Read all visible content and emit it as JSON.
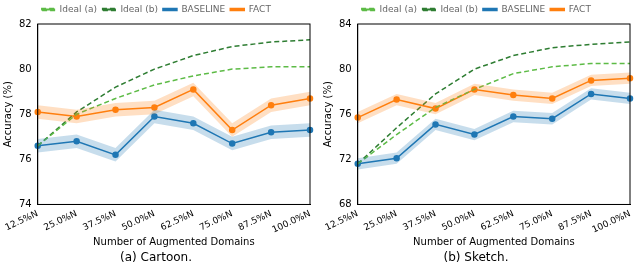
{
  "chart_data": [
    {
      "type": "line",
      "title": "(a) Cartoon.",
      "x_label": "Number of Augmented Domains",
      "y_label": "Accuracy (%)",
      "categories": [
        "12.5%N",
        "25.0%N",
        "37.5%N",
        "50.0%N",
        "62.5%N",
        "75.0%N",
        "87.5%N",
        "100.0%N"
      ],
      "ylim": [
        74,
        82
      ],
      "yticks": [
        74,
        76,
        78,
        80,
        82
      ],
      "grid": false,
      "legend": "top",
      "series": [
        {
          "name": "Ideal (a)",
          "color": "#5dbb46",
          "line_style": "dashed",
          "marker": "none",
          "values": [
            76.6,
            78.0,
            78.7,
            79.3,
            79.7,
            80.0,
            80.1,
            80.1
          ]
        },
        {
          "name": "Ideal (b)",
          "color": "#2e7d32",
          "line_style": "dashed",
          "marker": "none",
          "values": [
            76.6,
            78.1,
            79.2,
            80.0,
            80.6,
            81.0,
            81.2,
            81.3
          ]
        },
        {
          "name": "BASELINE",
          "color": "#1f77b4",
          "line_style": "solid",
          "marker": "circle",
          "values": [
            76.6,
            76.8,
            76.2,
            77.9,
            77.6,
            76.7,
            77.2,
            77.3
          ],
          "error": [
            0.3,
            0.3,
            0.3,
            0.3,
            0.3,
            0.3,
            0.3,
            0.3
          ]
        },
        {
          "name": "FACT",
          "color": "#ff7f0e",
          "line_style": "solid",
          "marker": "circle",
          "values": [
            78.1,
            77.9,
            78.2,
            78.3,
            79.1,
            77.3,
            78.4,
            78.7
          ],
          "error": [
            0.3,
            0.3,
            0.3,
            0.3,
            0.3,
            0.3,
            0.3,
            0.3
          ]
        }
      ]
    },
    {
      "type": "line",
      "title": "(b) Sketch.",
      "x_label": "Number of Augmented Domains",
      "y_label": "Accuracy (%)",
      "categories": [
        "12.5%N",
        "25.0%N",
        "37.5%N",
        "50.0%N",
        "62.5%N",
        "75.0%N",
        "87.5%N",
        "100.0%N"
      ],
      "ylim": [
        68,
        84
      ],
      "yticks": [
        68,
        72,
        76,
        80,
        84
      ],
      "grid": false,
      "legend": "top",
      "series": [
        {
          "name": "Ideal (a)",
          "color": "#5dbb46",
          "line_style": "dashed",
          "marker": "none",
          "values": [
            71.6,
            74.2,
            76.6,
            78.2,
            79.6,
            80.2,
            80.5,
            80.5
          ]
        },
        {
          "name": "Ideal (b)",
          "color": "#2e7d32",
          "line_style": "dashed",
          "marker": "none",
          "values": [
            71.6,
            74.8,
            77.8,
            80.0,
            81.2,
            81.9,
            82.2,
            82.4
          ]
        },
        {
          "name": "BASELINE",
          "color": "#1f77b4",
          "line_style": "solid",
          "marker": "circle",
          "values": [
            71.6,
            72.1,
            75.1,
            74.2,
            75.8,
            75.6,
            77.8,
            77.4
          ],
          "error": [
            0.5,
            0.5,
            0.5,
            0.5,
            0.5,
            0.5,
            0.5,
            0.5
          ]
        },
        {
          "name": "FACT",
          "color": "#ff7f0e",
          "line_style": "solid",
          "marker": "circle",
          "values": [
            75.7,
            77.3,
            76.5,
            78.2,
            77.7,
            77.4,
            79.0,
            79.2
          ],
          "error": [
            0.5,
            0.5,
            0.5,
            0.5,
            0.5,
            0.5,
            0.5,
            0.5
          ]
        }
      ]
    }
  ]
}
